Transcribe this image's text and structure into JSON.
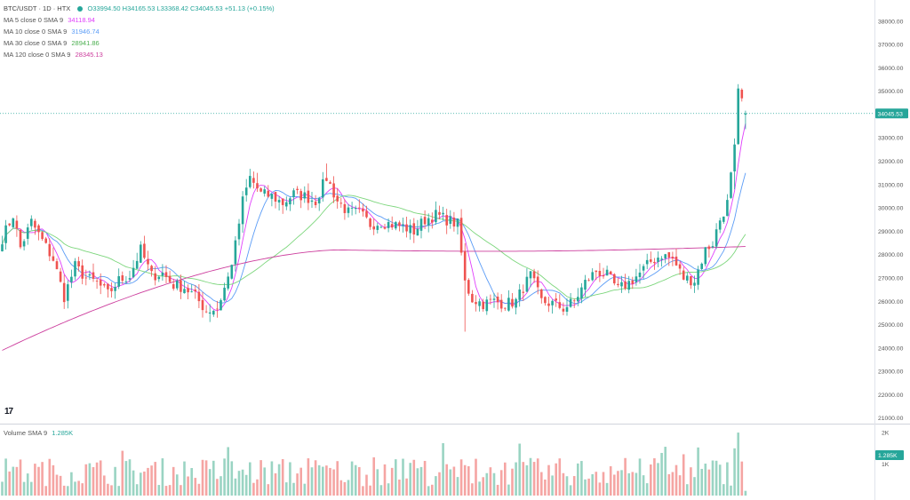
{
  "header": {
    "symbol": "BTC/USDT · 1D · HTX",
    "ohlc": "O33994.50  H34165.53  L33368.42  C34045.53  +51.13 (+0.15%)"
  },
  "indicators": [
    {
      "label": "MA 5 close 0 SMA 9",
      "value": "34118.94",
      "color": "#e040fb"
    },
    {
      "label": "MA 10 close 0 SMA 9",
      "value": "31946.74",
      "color": "#5b9cf6"
    },
    {
      "label": "MA 30 close 0 SMA 9",
      "value": "28941.86",
      "color": "#4caf50"
    },
    {
      "label": "MA 120 close 0 SMA 9",
      "value": "28345.13",
      "color": "#cc3d9d"
    }
  ],
  "volume_legend": {
    "label": "Volume SMA 9",
    "value": "1.285K"
  },
  "logo": "17",
  "price_axis_ticks": [
    "38000.00",
    "37000.00",
    "36000.00",
    "35000.00",
    "34000.00",
    "33000.00",
    "32000.00",
    "31000.00",
    "30000.00",
    "29000.00",
    "28000.00",
    "27000.00",
    "26000.00",
    "25000.00",
    "24000.00",
    "23000.00",
    "22000.00",
    "21000.00"
  ],
  "current_price_label": "34045.53",
  "volume_axis_ticks": [
    "2K",
    "1K"
  ],
  "current_volume_label": "1.285K",
  "colors": {
    "up": "#26a69a",
    "down": "#ef5350",
    "vol_up": "#9ad4c3",
    "vol_down": "#f5a5a3"
  },
  "chart_data": {
    "type": "candlestick",
    "title": "BTC/USDT · 1D · HTX",
    "ylim": [
      20800,
      38600
    ],
    "volume_ylim": [
      0,
      2200
    ],
    "grid": false,
    "anchors": [
      [
        0,
        28700
      ],
      [
        3,
        29700
      ],
      [
        5,
        28300
      ],
      [
        8,
        29400
      ],
      [
        11,
        28600
      ],
      [
        14,
        27800
      ],
      [
        17,
        26200
      ],
      [
        20,
        27500
      ],
      [
        23,
        27000
      ],
      [
        26,
        26800
      ],
      [
        29,
        26300
      ],
      [
        32,
        26900
      ],
      [
        35,
        27100
      ],
      [
        38,
        28200
      ],
      [
        41,
        27100
      ],
      [
        44,
        27200
      ],
      [
        47,
        26700
      ],
      [
        50,
        26600
      ],
      [
        53,
        26200
      ],
      [
        56,
        25600
      ],
      [
        59,
        25700
      ],
      [
        62,
        27000
      ],
      [
        64,
        28400
      ],
      [
        66,
        30300
      ],
      [
        68,
        31300
      ],
      [
        71,
        30600
      ],
      [
        74,
        30500
      ],
      [
        77,
        30200
      ],
      [
        80,
        30600
      ],
      [
        83,
        30500
      ],
      [
        86,
        30300
      ],
      [
        89,
        31300
      ],
      [
        92,
        30300
      ],
      [
        95,
        29800
      ],
      [
        98,
        29800
      ],
      [
        101,
        29300
      ],
      [
        104,
        29400
      ],
      [
        107,
        29300
      ],
      [
        110,
        29200
      ],
      [
        113,
        29000
      ],
      [
        116,
        29500
      ],
      [
        119,
        29700
      ],
      [
        122,
        29500
      ],
      [
        125,
        29300
      ],
      [
        127,
        26800
      ],
      [
        129,
        26100
      ],
      [
        132,
        25900
      ],
      [
        135,
        26000
      ],
      [
        138,
        25900
      ],
      [
        141,
        26000
      ],
      [
        143,
        26600
      ],
      [
        145,
        27100
      ],
      [
        148,
        26000
      ],
      [
        151,
        25900
      ],
      [
        154,
        25700
      ],
      [
        157,
        26000
      ],
      [
        160,
        26800
      ],
      [
        163,
        27300
      ],
      [
        166,
        27100
      ],
      [
        169,
        26500
      ],
      [
        172,
        26800
      ],
      [
        175,
        27200
      ],
      [
        178,
        27700
      ],
      [
        181,
        28000
      ],
      [
        184,
        27800
      ],
      [
        187,
        27000
      ],
      [
        190,
        26900
      ],
      [
        193,
        28200
      ],
      [
        195,
        28500
      ],
      [
        197,
        29500
      ],
      [
        199,
        30200
      ],
      [
        201,
        32500
      ],
      [
        202,
        34900
      ],
      [
        203,
        34600
      ],
      [
        204,
        34045
      ]
    ],
    "ma_periods": [
      5,
      10,
      30
    ],
    "ma120": {
      "start": 23900,
      "mid_index": 92,
      "mid": 28200,
      "end": 28345
    },
    "volume_spike_index": 202,
    "volume_spike_value": 2000,
    "last": {
      "open": 33994.5,
      "high": 34165.53,
      "low": 33368.42,
      "close": 34045.53
    }
  }
}
